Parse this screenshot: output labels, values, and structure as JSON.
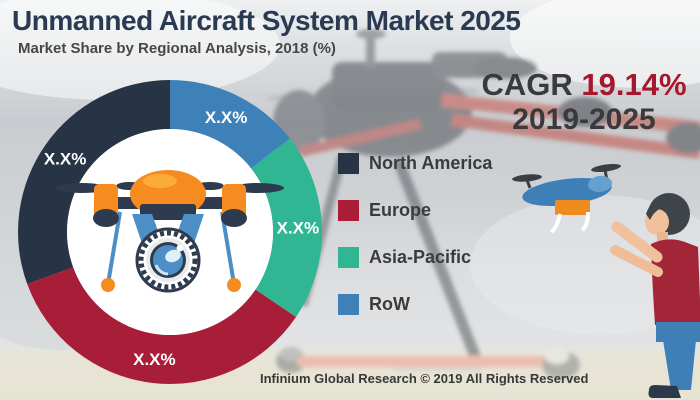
{
  "header": {
    "title": "Unmanned Aircraft System Market 2025",
    "subtitle": "Market Share by Regional Analysis, 2018 (%)"
  },
  "cagr": {
    "label": "CAGR",
    "value": "19.14%",
    "period": "2019-2025"
  },
  "chart_data": {
    "type": "pie",
    "variant": "donut",
    "title": "Market Share by Regional Analysis, 2018 (%)",
    "unit": "%",
    "values_masked_as": "X.X%",
    "segments": [
      {
        "label": "RoW",
        "display_value": "X.X%",
        "color": "#3e81b8",
        "start_angle": 0,
        "end_angle": 52,
        "share_pct_est": 14.4
      },
      {
        "label": "Asia-Pacific",
        "display_value": "X.X%",
        "color": "#30b692",
        "start_angle": 52,
        "end_angle": 124,
        "share_pct_est": 20.0
      },
      {
        "label": "Europe",
        "display_value": "X.X%",
        "color": "#a81e38",
        "start_angle": 124,
        "end_angle": 250,
        "share_pct_est": 35.0
      },
      {
        "label": "North America",
        "display_value": "X.X%",
        "color": "#263446",
        "start_angle": 250,
        "end_angle": 360,
        "share_pct_est": 30.6
      }
    ],
    "legend_position": "right"
  },
  "legend": {
    "items": [
      {
        "label": "North America",
        "color": "#263446"
      },
      {
        "label": "Europe",
        "color": "#ab1d37"
      },
      {
        "label": "Asia-Pacific",
        "color": "#30b692"
      },
      {
        "label": "RoW",
        "color": "#3e81b8"
      }
    ]
  },
  "footer": {
    "text": "Infinium Global Research © 2019 All Rights Reserved"
  },
  "colors": {
    "title_navy": "#2a3a52",
    "cagr_text": "#3a3a3c",
    "cagr_value_red": "#a5182e",
    "ground_beige": "#e8e5d6"
  }
}
